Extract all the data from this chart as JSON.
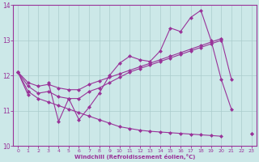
{
  "x": [
    0,
    1,
    2,
    3,
    4,
    5,
    6,
    7,
    8,
    9,
    10,
    11,
    12,
    13,
    14,
    15,
    16,
    17,
    18,
    19,
    20,
    21,
    22,
    23
  ],
  "line_main": [
    12.1,
    11.45,
    null,
    11.8,
    10.7,
    11.35,
    10.75,
    11.1,
    11.5,
    12.0,
    12.35,
    12.55,
    12.45,
    12.4,
    12.7,
    13.35,
    13.25,
    13.65,
    13.85,
    13.0,
    11.9,
    11.05,
    null,
    null
  ],
  "line_upper": [
    null,
    null,
    null,
    null,
    null,
    null,
    null,
    null,
    null,
    null,
    null,
    null,
    null,
    null,
    12.7,
    13.35,
    13.25,
    13.65,
    13.85,
    null,
    null,
    null,
    null,
    null
  ],
  "line_reg1": [
    12.1,
    11.7,
    11.5,
    11.55,
    11.4,
    11.35,
    11.35,
    11.55,
    11.65,
    11.8,
    11.95,
    12.1,
    12.2,
    12.3,
    12.4,
    12.5,
    12.6,
    12.7,
    12.8,
    12.9,
    13.0,
    null,
    null,
    null
  ],
  "line_reg2": [
    12.1,
    11.8,
    11.7,
    11.75,
    11.65,
    11.6,
    11.6,
    11.75,
    11.85,
    11.95,
    12.05,
    12.15,
    12.25,
    12.35,
    12.45,
    12.55,
    12.65,
    12.75,
    12.85,
    12.95,
    13.05,
    null,
    null,
    null
  ],
  "line_bottom": [
    12.1,
    11.55,
    null,
    null,
    null,
    null,
    null,
    null,
    null,
    null,
    null,
    null,
    null,
    null,
    null,
    null,
    null,
    null,
    null,
    null,
    13.05,
    11.9,
    null,
    10.35
  ],
  "line_diag": [
    null,
    11.55,
    11.35,
    11.25,
    11.15,
    11.05,
    10.95,
    10.85,
    10.75,
    10.65,
    10.55,
    10.5,
    10.45,
    10.42,
    10.4,
    10.38,
    10.36,
    10.34,
    10.32,
    10.3,
    10.28,
    null,
    null,
    10.35
  ],
  "color": "#993399",
  "bg_color": "#cce8e8",
  "grid_color": "#aacccc",
  "xlabel": "Windchill (Refroidissement éolien,°C)",
  "ylim": [
    10,
    14
  ],
  "xlim": [
    -0.5,
    23.5
  ],
  "yticks": [
    10,
    11,
    12,
    13,
    14
  ],
  "xticks": [
    0,
    1,
    2,
    3,
    4,
    5,
    6,
    7,
    8,
    9,
    10,
    11,
    12,
    13,
    14,
    15,
    16,
    17,
    18,
    19,
    20,
    21,
    22,
    23
  ]
}
